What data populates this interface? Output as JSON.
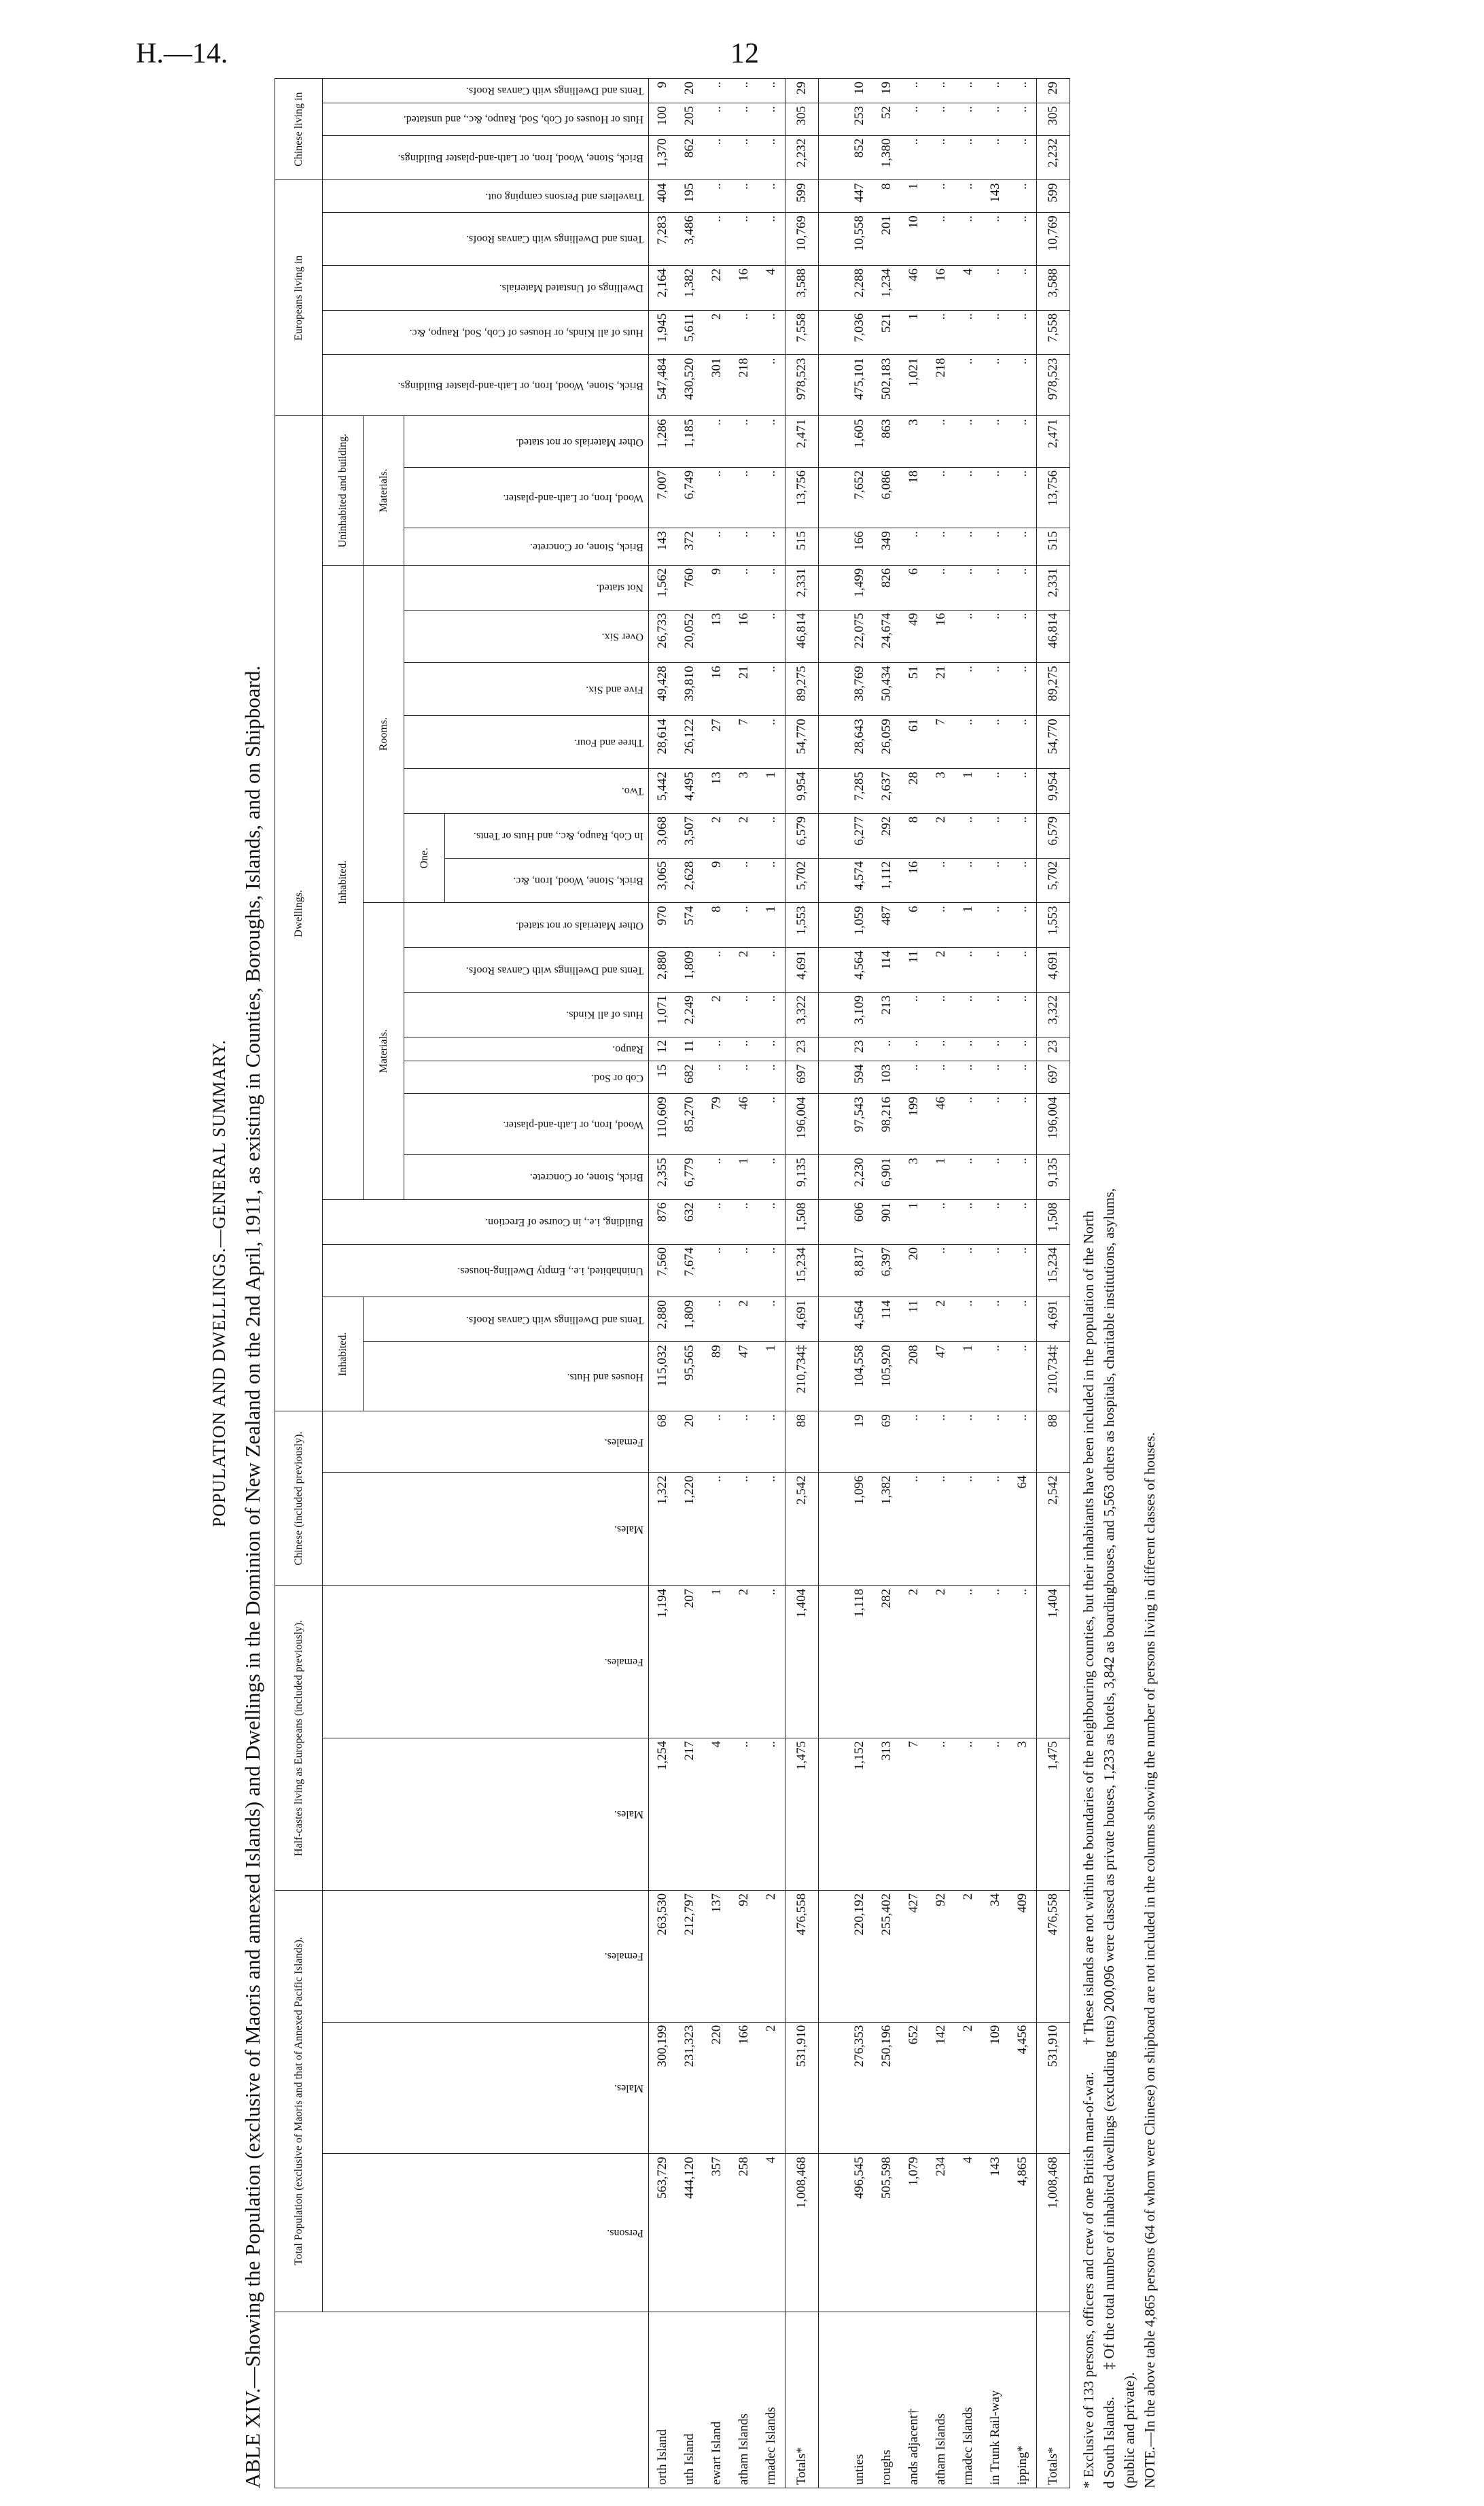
{
  "header": {
    "code": "H.—14.",
    "page": "12"
  },
  "title": "POPULATION AND DWELLINGS.—GENERAL SUMMARY.",
  "subtitle": "ABLE XIV.—Showing the Population (exclusive of Maoris and annexed Islands) and Dwellings in the Dominion of New Zealand on the 2nd April, 1911, as existing in Counties, Boroughs, Islands, and on Shipboard.",
  "table": {
    "groups": {
      "total_population": "Total Population (exclusive of Maoris and that of Annexed Pacific Islands).",
      "half_castes": "Half-castes living as Europeans (included previously).",
      "chinese": "Chinese (included previously).",
      "dwellings": "Dwellings.",
      "inhabited": "Inhabited.",
      "inhabited_2": "Inhabited.",
      "materials": "Materials.",
      "rooms": "Rooms.",
      "one": "One.",
      "uninhabited_building": "Uninhabited and building.",
      "materials_2": "Materials.",
      "europeans": "Europeans living in",
      "chinese_living": "Chinese living in"
    },
    "columns": [
      "Persons.",
      "Males.",
      "Females.",
      "Males.",
      "Females.",
      "Males.",
      "Females.",
      "Houses and Huts.",
      "Tents and Dwellings with Canvas Roofs.",
      "Uninhabited, i.e., Empty Dwelling-houses.",
      "Building, i.e., in Course of Erection.",
      "Brick, Stone, or Concrete.",
      "Wood, Iron, or Lath-and-plaster.",
      "Cob or Sod.",
      "Raupo.",
      "Huts of all Kinds.",
      "Tents and Dwellings with Canvas Roofs.",
      "Other Materials or not stated.",
      "Brick, Stone, Wood, Iron, &c.",
      "In Cob, Raupo, &c., and Huts or Tents.",
      "Two.",
      "Three and Four.",
      "Five and Six.",
      "Over Six.",
      "Not stated.",
      "Brick, Stone, or Concrete.",
      "Wood, Iron, or Lath-and-plaster.",
      "Other Materials or not stated.",
      "Brick, Stone, Wood, Iron, or Lath-and-plaster Buildings.",
      "Huts of all Kinds, or Houses of Cob, Sod, Raupo, &c.",
      "Dwellings of Unstated Materials.",
      "Tents and Dwellings with Canvas Roofs.",
      "Travellers and Persons camping out.",
      "Brick, Stone, Wood, Iron, or Lath-and-plaster Buildings.",
      "Huts or Houses of Cob, Sod, Raupo, &c., and unstated.",
      "Tents and Dwellings with Canvas Roofs."
    ],
    "sections": [
      {
        "rows": [
          {
            "label": "orth Island",
            "cells": [
              "563,729",
              "300,199",
              "263,530",
              "1,254",
              "1,194",
              "1,322",
              "68",
              "115,032",
              "2,880",
              "7,560",
              "876",
              "2,355",
              "110,609",
              "15",
              "12",
              "1,071",
              "2,880",
              "970",
              "3,065",
              "3,068",
              "5,442",
              "28,614",
              "49,428",
              "26,733",
              "1,562",
              "143",
              "7,007",
              "1,286",
              "547,484",
              "1,945",
              "2,164",
              "7,283",
              "404",
              "1,370",
              "100",
              "9"
            ]
          },
          {
            "label": "uth Island",
            "cells": [
              "444,120",
              "231,323",
              "212,797",
              "217",
              "207",
              "1,220",
              "20",
              "95,565",
              "1,809",
              "7,674",
              "632",
              "6,779",
              "85,270",
              "682",
              "11",
              "2,249",
              "1,809",
              "574",
              "2,628",
              "3,507",
              "4,495",
              "26,122",
              "39,810",
              "20,052",
              "760",
              "372",
              "6,749",
              "1,185",
              "430,520",
              "5,611",
              "1,382",
              "3,486",
              "195",
              "862",
              "205",
              "20"
            ]
          },
          {
            "label": "ewart Island",
            "cells": [
              "357",
              "220",
              "137",
              "4",
              "1",
              "..",
              "..",
              "89",
              "..",
              "..",
              "..",
              "..",
              "79",
              "..",
              "..",
              "2",
              "..",
              "8",
              "9",
              "2",
              "13",
              "27",
              "16",
              "13",
              "9",
              "..",
              "..",
              "..",
              "301",
              "2",
              "22",
              "..",
              "..",
              "..",
              "..",
              ".."
            ]
          },
          {
            "label": "atham Islands",
            "cells": [
              "258",
              "166",
              "92",
              "..",
              "2",
              "..",
              "..",
              "47",
              "2",
              "..",
              "..",
              "1",
              "46",
              "..",
              "..",
              "..",
              "2",
              "..",
              "..",
              "2",
              "3",
              "7",
              "21",
              "16",
              "..",
              "..",
              "..",
              "..",
              "218",
              "..",
              "16",
              "..",
              "..",
              "..",
              "..",
              ".."
            ]
          },
          {
            "label": "rmadec Islands",
            "cells": [
              "4",
              "2",
              "2",
              "..",
              "..",
              "..",
              "..",
              "1",
              "..",
              "..",
              "..",
              "..",
              "..",
              "..",
              "..",
              "..",
              "..",
              "1",
              "..",
              "..",
              "1",
              "..",
              "..",
              "..",
              "..",
              "..",
              "..",
              "..",
              "..",
              "..",
              "4",
              "..",
              "..",
              "..",
              "..",
              ".."
            ]
          },
          {
            "label": "Totals*",
            "cells": [
              "1,008,468",
              "531,910",
              "476,558",
              "1,475",
              "1,404",
              "2,542",
              "88",
              "210,734‡",
              "4,691",
              "15,234",
              "1,508",
              "9,135",
              "196,004",
              "697",
              "23",
              "3,322",
              "4,691",
              "1,553",
              "5,702",
              "6,579",
              "9,954",
              "54,770",
              "89,275",
              "46,814",
              "2,331",
              "515",
              "13,756",
              "2,471",
              "978,523",
              "7,558",
              "3,588",
              "10,769",
              "599",
              "2,232",
              "305",
              "29"
            ]
          }
        ]
      },
      {
        "rows": [
          {
            "label": "unties",
            "cells": [
              "496,545",
              "276,353",
              "220,192",
              "1,152",
              "1,118",
              "1,096",
              "19",
              "104,558",
              "4,564",
              "8,817",
              "606",
              "2,230",
              "97,543",
              "594",
              "23",
              "3,109",
              "4,564",
              "1,059",
              "4,574",
              "6,277",
              "7,285",
              "28,643",
              "38,769",
              "22,075",
              "1,499",
              "166",
              "7,652",
              "1,605",
              "475,101",
              "7,036",
              "2,288",
              "10,558",
              "447",
              "852",
              "253",
              "10"
            ]
          },
          {
            "label": "roughs",
            "cells": [
              "505,598",
              "250,196",
              "255,402",
              "313",
              "282",
              "1,382",
              "69",
              "105,920",
              "114",
              "6,397",
              "901",
              "6,901",
              "98,216",
              "103",
              "..",
              "213",
              "114",
              "487",
              "1,112",
              "292",
              "2,637",
              "26,059",
              "50,434",
              "24,674",
              "826",
              "349",
              "6,086",
              "863",
              "502,183",
              "521",
              "1,234",
              "201",
              "8",
              "1,380",
              "52",
              "19"
            ]
          },
          {
            "label": "ands adjacent†",
            "cells": [
              "1,079",
              "652",
              "427",
              "7",
              "2",
              "..",
              "..",
              "208",
              "11",
              "20",
              "1",
              "3",
              "199",
              "..",
              "..",
              "..",
              "11",
              "6",
              "16",
              "8",
              "28",
              "61",
              "51",
              "49",
              "6",
              "..",
              "18",
              "3",
              "1,021",
              "1",
              "46",
              "10",
              "1",
              "..",
              "..",
              ".."
            ]
          },
          {
            "label": "atham Islands",
            "cells": [
              "234",
              "142",
              "92",
              "..",
              "2",
              "..",
              "..",
              "47",
              "2",
              "..",
              "..",
              "1",
              "46",
              "..",
              "..",
              "..",
              "2",
              "..",
              "..",
              "2",
              "3",
              "7",
              "21",
              "16",
              "..",
              "..",
              "..",
              "..",
              "218",
              "..",
              "16",
              "..",
              "..",
              "..",
              "..",
              ".."
            ]
          },
          {
            "label": "rmadec Islands",
            "cells": [
              "4",
              "2",
              "2",
              "..",
              "..",
              "..",
              "..",
              "1",
              "..",
              "..",
              "..",
              "..",
              "..",
              "..",
              "..",
              "..",
              "..",
              "1",
              "..",
              "..",
              "1",
              "..",
              "..",
              "..",
              "..",
              "..",
              "..",
              "..",
              "..",
              "..",
              "4",
              "..",
              "..",
              "..",
              "..",
              ".."
            ]
          },
          {
            "label": "in Trunk Rail-way",
            "cells": [
              "143",
              "109",
              "34",
              "..",
              "..",
              "..",
              "..",
              "..",
              "..",
              "..",
              "..",
              "..",
              "..",
              "..",
              "..",
              "..",
              "..",
              "..",
              "..",
              "..",
              "..",
              "..",
              "..",
              "..",
              "..",
              "..",
              "..",
              "..",
              "..",
              "..",
              "..",
              "..",
              "143",
              "..",
              "..",
              ".."
            ]
          },
          {
            "label": "ipping*",
            "cells": [
              "4,865",
              "4,456",
              "409",
              "3",
              "..",
              "64",
              "..",
              "..",
              "..",
              "..",
              "..",
              "..",
              "..",
              "..",
              "..",
              "..",
              "..",
              "..",
              "..",
              "..",
              "..",
              "..",
              "..",
              "..",
              "..",
              "..",
              "..",
              "..",
              "..",
              "..",
              "..",
              "..",
              "..",
              "..",
              "..",
              ".."
            ]
          },
          {
            "label": "Totals*",
            "cells": [
              "1,008,468",
              "531,910",
              "476,558",
              "1,475",
              "1,404",
              "2,542",
              "88",
              "210,734‡",
              "4,691",
              "15,234",
              "1,508",
              "9,135",
              "196,004",
              "697",
              "23",
              "3,322",
              "4,691",
              "1,553",
              "5,702",
              "6,579",
              "9,954",
              "54,770",
              "89,275",
              "46,814",
              "2,331",
              "515",
              "13,756",
              "2,471",
              "978,523",
              "7,558",
              "3,588",
              "10,769",
              "599",
              "2,232",
              "305",
              "29"
            ]
          }
        ]
      }
    ]
  },
  "footnotes": [
    "* Exclusive of 133 persons, officers and crew of one British man-of-war.",
    "† These islands are not within the boundaries of the neighbouring counties, but their inhabitants have been included in the population of the North",
    "d South Islands.",
    "‡ Of the total number of inhabited dwellings (excluding tents) 200,096 were classed as private houses, 1,233 as hotels, 3,842 as boardinghouses, and 5,563 others as hospitals, charitable institutions, asylums,",
    "(public and private).",
    "NOTE.—In the above table 4,865 persons (64 of whom were Chinese) on shipboard are not included in the columns showing the number of persons living in different classes of houses."
  ]
}
